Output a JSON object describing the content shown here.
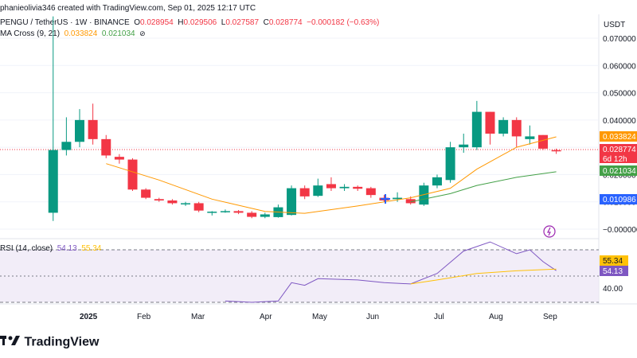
{
  "header": {
    "top_line": "phanieolivia346 created with TradingView.com, Sep 01, 2025 12:17 UTC",
    "symbol": "PENGU / TetherUS · 1W · BINANCE",
    "open_label": "O",
    "open": "0.028954",
    "high_label": "H",
    "high": "0.029506",
    "low_label": "L",
    "low": "0.027587",
    "close_label": "C",
    "close": "0.028774",
    "change": "−0.000182 (−0.63%)",
    "ema_title": "MA Cross (9, 21)",
    "ema_fast": "0.033824",
    "ema_slow": "0.021034",
    "ema_icon": "eye-slash-icon"
  },
  "price_axis": {
    "currency": "USDT",
    "ticks": [
      "0.070000",
      "0.060000",
      "0.050000",
      "0.040000",
      "0.030000",
      "0.020000",
      "0.010000",
      "−0.000000"
    ],
    "tags": {
      "ema_fast": "0.033824",
      "last_price": "0.028774",
      "countdown": "6d 12h",
      "ema_slow": "0.021034",
      "low_marker": "0.010986"
    }
  },
  "rsi": {
    "title": "RSI (14, close)",
    "value": "54.13",
    "ma_value": "55.34",
    "tick_40": "40.00"
  },
  "x_axis": {
    "labels": [
      "2025",
      "Feb",
      "Mar",
      "Apr",
      "May",
      "Jun",
      "Jul",
      "Aug",
      "Sep"
    ]
  },
  "footer": {
    "logo_text": "TradingView",
    "logo_icon": "tradingview-logo-icon"
  },
  "colors": {
    "up": "#089981",
    "down": "#f23645",
    "ema_fast": "#ff9800",
    "ema_slow": "#43a047",
    "rsi": "#7e57c2",
    "rsi_ma": "#ffc107",
    "rsi_band": "#ede7f6",
    "low_tag": "#2962ff"
  },
  "chart_data": {
    "type": "candlestick",
    "title": "PENGU / TetherUS · 1W · BINANCE",
    "ylabel": "USDT",
    "ylim": [
      -0.003,
      0.075
    ],
    "ohlc_series": [
      {
        "x": "2024-12-16",
        "o": 0.006,
        "h": 0.078,
        "l": 0.003,
        "c": 0.029
      },
      {
        "x": "2024-12-23",
        "o": 0.029,
        "h": 0.041,
        "l": 0.027,
        "c": 0.032
      },
      {
        "x": "2024-12-30",
        "o": 0.032,
        "h": 0.044,
        "l": 0.03,
        "c": 0.04
      },
      {
        "x": "2025-01-06",
        "o": 0.04,
        "h": 0.046,
        "l": 0.031,
        "c": 0.033
      },
      {
        "x": "2025-01-13",
        "o": 0.033,
        "h": 0.0345,
        "l": 0.026,
        "c": 0.027
      },
      {
        "x": "2025-01-20",
        "o": 0.0265,
        "h": 0.0275,
        "l": 0.024,
        "c": 0.0255
      },
      {
        "x": "2025-01-27",
        "o": 0.0255,
        "h": 0.026,
        "l": 0.014,
        "c": 0.0145
      },
      {
        "x": "2025-02-03",
        "o": 0.0145,
        "h": 0.015,
        "l": 0.011,
        "c": 0.0115
      },
      {
        "x": "2025-02-10",
        "o": 0.011,
        "h": 0.0115,
        "l": 0.01,
        "c": 0.0105
      },
      {
        "x": "2025-02-17",
        "o": 0.0105,
        "h": 0.011,
        "l": 0.009,
        "c": 0.0095
      },
      {
        "x": "2025-02-24",
        "o": 0.0093,
        "h": 0.01,
        "l": 0.0085,
        "c": 0.0095
      },
      {
        "x": "2025-03-03",
        "o": 0.0095,
        "h": 0.01,
        "l": 0.0062,
        "c": 0.0068
      },
      {
        "x": "2025-03-10",
        "o": 0.006,
        "h": 0.0066,
        "l": 0.005,
        "c": 0.0064
      },
      {
        "x": "2025-03-17",
        "o": 0.0064,
        "h": 0.0072,
        "l": 0.006,
        "c": 0.0066
      },
      {
        "x": "2025-03-24",
        "o": 0.0066,
        "h": 0.007,
        "l": 0.0055,
        "c": 0.006
      },
      {
        "x": "2025-03-31",
        "o": 0.006,
        "h": 0.0066,
        "l": 0.004,
        "c": 0.0045
      },
      {
        "x": "2025-04-07",
        "o": 0.0045,
        "h": 0.006,
        "l": 0.004,
        "c": 0.0054
      },
      {
        "x": "2025-04-14",
        "o": 0.0044,
        "h": 0.009,
        "l": 0.0042,
        "c": 0.008
      },
      {
        "x": "2025-04-21",
        "o": 0.0052,
        "h": 0.016,
        "l": 0.005,
        "c": 0.015
      },
      {
        "x": "2025-04-28",
        "o": 0.015,
        "h": 0.016,
        "l": 0.011,
        "c": 0.012
      },
      {
        "x": "2025-05-05",
        "o": 0.0122,
        "h": 0.0185,
        "l": 0.0118,
        "c": 0.016
      },
      {
        "x": "2025-05-12",
        "o": 0.0165,
        "h": 0.019,
        "l": 0.014,
        "c": 0.015
      },
      {
        "x": "2025-05-19",
        "o": 0.015,
        "h": 0.0165,
        "l": 0.014,
        "c": 0.0155
      },
      {
        "x": "2025-05-26",
        "o": 0.0155,
        "h": 0.016,
        "l": 0.014,
        "c": 0.0148
      },
      {
        "x": "2025-06-02",
        "o": 0.015,
        "h": 0.0155,
        "l": 0.0115,
        "c": 0.0125
      },
      {
        "x": "2025-06-09",
        "o": 0.0115,
        "h": 0.0125,
        "l": 0.01,
        "c": 0.0105
      },
      {
        "x": "2025-06-16",
        "o": 0.011,
        "h": 0.0135,
        "l": 0.01,
        "c": 0.0115
      },
      {
        "x": "2025-06-23",
        "o": 0.011,
        "h": 0.012,
        "l": 0.009,
        "c": 0.0095
      },
      {
        "x": "2025-06-30",
        "o": 0.009,
        "h": 0.017,
        "l": 0.0085,
        "c": 0.016
      },
      {
        "x": "2025-07-07",
        "o": 0.016,
        "h": 0.02,
        "l": 0.015,
        "c": 0.019
      },
      {
        "x": "2025-07-14",
        "o": 0.018,
        "h": 0.032,
        "l": 0.017,
        "c": 0.03
      },
      {
        "x": "2025-07-21",
        "o": 0.03,
        "h": 0.035,
        "l": 0.028,
        "c": 0.031
      },
      {
        "x": "2025-07-28",
        "o": 0.03,
        "h": 0.047,
        "l": 0.029,
        "c": 0.043
      },
      {
        "x": "2025-08-04",
        "o": 0.043,
        "h": 0.043,
        "l": 0.031,
        "c": 0.035
      },
      {
        "x": "2025-08-11",
        "o": 0.035,
        "h": 0.041,
        "l": 0.034,
        "c": 0.04
      },
      {
        "x": "2025-08-18",
        "o": 0.04,
        "h": 0.041,
        "l": 0.03,
        "c": 0.034
      },
      {
        "x": "2025-08-25",
        "o": 0.033,
        "h": 0.038,
        "l": 0.031,
        "c": 0.034
      },
      {
        "x": "2025-09-01",
        "o": 0.0345,
        "h": 0.0345,
        "l": 0.029,
        "c": 0.0295
      },
      {
        "x": "2025-09-08",
        "o": 0.028954,
        "h": 0.029506,
        "l": 0.027587,
        "c": 0.028774
      }
    ],
    "ema_fast": {
      "name": "EMA 9",
      "values": [
        {
          "x": "2025-01-13",
          "y": 0.024
        },
        {
          "x": "2025-02-10",
          "y": 0.018
        },
        {
          "x": "2025-03-10",
          "y": 0.011
        },
        {
          "x": "2025-04-07",
          "y": 0.0065
        },
        {
          "x": "2025-04-28",
          "y": 0.0058
        },
        {
          "x": "2025-05-26",
          "y": 0.0085
        },
        {
          "x": "2025-06-23",
          "y": 0.0115
        },
        {
          "x": "2025-07-14",
          "y": 0.015
        },
        {
          "x": "2025-07-28",
          "y": 0.022
        },
        {
          "x": "2025-08-18",
          "y": 0.03
        },
        {
          "x": "2025-09-08",
          "y": 0.033824
        }
      ]
    },
    "ema_slow": {
      "name": "EMA 21",
      "values": [
        {
          "x": "2025-06-23",
          "y": 0.01
        },
        {
          "x": "2025-07-14",
          "y": 0.013
        },
        {
          "x": "2025-07-28",
          "y": 0.016
        },
        {
          "x": "2025-08-18",
          "y": 0.019
        },
        {
          "x": "2025-09-08",
          "y": 0.021034
        }
      ]
    },
    "rsi": {
      "name": "RSI",
      "ylim": [
        25,
        80
      ],
      "values": [
        {
          "x": "2025-03-17",
          "y": 31
        },
        {
          "x": "2025-03-31",
          "y": 30
        },
        {
          "x": "2025-04-14",
          "y": 31
        },
        {
          "x": "2025-04-21",
          "y": 45
        },
        {
          "x": "2025-04-28",
          "y": 43
        },
        {
          "x": "2025-05-05",
          "y": 48
        },
        {
          "x": "2025-05-26",
          "y": 47
        },
        {
          "x": "2025-06-09",
          "y": 45
        },
        {
          "x": "2025-06-23",
          "y": 44
        },
        {
          "x": "2025-07-07",
          "y": 52
        },
        {
          "x": "2025-07-21",
          "y": 69
        },
        {
          "x": "2025-08-04",
          "y": 76
        },
        {
          "x": "2025-08-18",
          "y": 67
        },
        {
          "x": "2025-08-25",
          "y": 70
        },
        {
          "x": "2025-09-01",
          "y": 61
        },
        {
          "x": "2025-09-08",
          "y": 54.13
        }
      ]
    },
    "rsi_ma": {
      "name": "RSI MA",
      "values": [
        {
          "x": "2025-06-23",
          "y": 44
        },
        {
          "x": "2025-07-07",
          "y": 47
        },
        {
          "x": "2025-07-28",
          "y": 52
        },
        {
          "x": "2025-08-18",
          "y": 54
        },
        {
          "x": "2025-09-08",
          "y": 55.34
        }
      ]
    },
    "rsi_bands": [
      70,
      50,
      30
    ],
    "grid": true,
    "legend": "top-left"
  }
}
